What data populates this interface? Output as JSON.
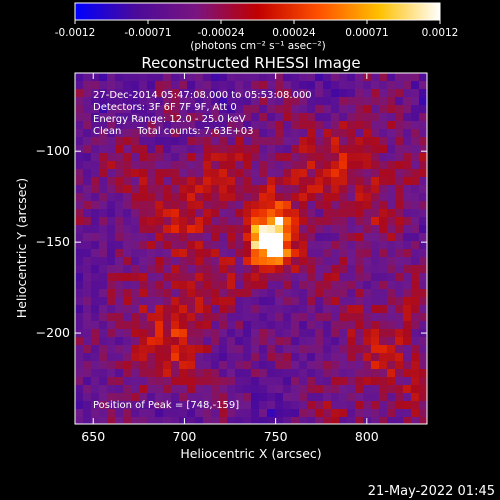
{
  "colorbar": {
    "ticks": [
      "-0.0012",
      "-0.00071",
      "-0.00024",
      "0.00024",
      "0.00071",
      "0.0012"
    ],
    "unit_label": "(photons cm⁻² s⁻¹ asec⁻²)",
    "colors": [
      "#0000ff",
      "#4b0a9a",
      "#7a1480",
      "#c00000",
      "#ff5000",
      "#ffc000",
      "#ffffff"
    ]
  },
  "chart_data": {
    "type": "heatmap",
    "title": "Reconstructed RHESSI Image",
    "xlabel": "Heliocentric X (arcsec)",
    "ylabel": "Heliocentric Y (arcsec)",
    "xlim": [
      640,
      833
    ],
    "ylim": [
      -250,
      -57
    ],
    "x_ticks": [
      650,
      700,
      750,
      800
    ],
    "y_ticks": [
      -100,
      -150,
      -200
    ],
    "annotations": [
      "27-Dec-2014 05:47:08.000 to 05:53:08.000",
      "Detectors: 3F 6F 7F 9F, Att 0",
      "Energy Range: 12.0 - 25.0 keV",
      "Clean     Total counts: 7.63E+03",
      "Position of Peak = [748,-159]"
    ],
    "peak": [
      748,
      -159
    ],
    "flux_range": [
      -0.0012,
      0.0012
    ]
  },
  "footer": {
    "timestamp": "21-May-2022 01:45"
  }
}
